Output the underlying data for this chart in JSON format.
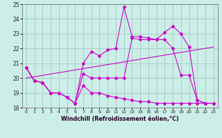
{
  "xlabel": "Windchill (Refroidissement éolien,°C)",
  "xlim": [
    -0.5,
    23.5
  ],
  "ylim": [
    18,
    25
  ],
  "yticks": [
    18,
    19,
    20,
    21,
    22,
    23,
    24,
    25
  ],
  "xticks": [
    0,
    1,
    2,
    3,
    4,
    5,
    6,
    7,
    8,
    9,
    10,
    11,
    12,
    13,
    14,
    15,
    16,
    17,
    18,
    19,
    20,
    21,
    22,
    23
  ],
  "bg_color": "#cceee8",
  "line_color": "#cc00cc",
  "grid_color": "#aaccc8",
  "line1_x": [
    0,
    1,
    2,
    3,
    4,
    5,
    6,
    7,
    8,
    9,
    10,
    11,
    12,
    13,
    14,
    15,
    16,
    17,
    18,
    19,
    20,
    21,
    22,
    23
  ],
  "line1_y": [
    20.7,
    19.8,
    19.7,
    19.0,
    19.0,
    18.7,
    18.3,
    21.0,
    21.8,
    21.5,
    21.9,
    22.0,
    24.8,
    22.8,
    22.8,
    22.7,
    22.6,
    23.1,
    23.5,
    23.0,
    22.1,
    18.5,
    18.3,
    18.3
  ],
  "line2_x": [
    0,
    1,
    2,
    3,
    4,
    5,
    6,
    7,
    8,
    9,
    10,
    11,
    12,
    13,
    14,
    15,
    16,
    17,
    18,
    19,
    20,
    21,
    22,
    23
  ],
  "line2_y": [
    20.7,
    19.8,
    19.7,
    19.0,
    19.0,
    18.7,
    18.3,
    20.3,
    20.0,
    20.0,
    20.0,
    20.0,
    20.0,
    22.7,
    22.6,
    22.6,
    22.6,
    22.6,
    22.0,
    20.2,
    20.2,
    18.5,
    18.3,
    18.3
  ],
  "line3_x": [
    0,
    1,
    2,
    3,
    4,
    5,
    6,
    7,
    8,
    9,
    10,
    11,
    12,
    13,
    14,
    15,
    16,
    17,
    18,
    19,
    20,
    21,
    22,
    23
  ],
  "line3_y": [
    20.7,
    19.8,
    19.7,
    19.0,
    19.0,
    18.7,
    18.3,
    19.5,
    19.0,
    19.0,
    18.8,
    18.7,
    18.6,
    18.5,
    18.4,
    18.4,
    18.3,
    18.3,
    18.3,
    18.3,
    18.3,
    18.3,
    18.3,
    18.3
  ],
  "line4_x": [
    0,
    23
  ],
  "line4_y": [
    20.0,
    22.1
  ]
}
